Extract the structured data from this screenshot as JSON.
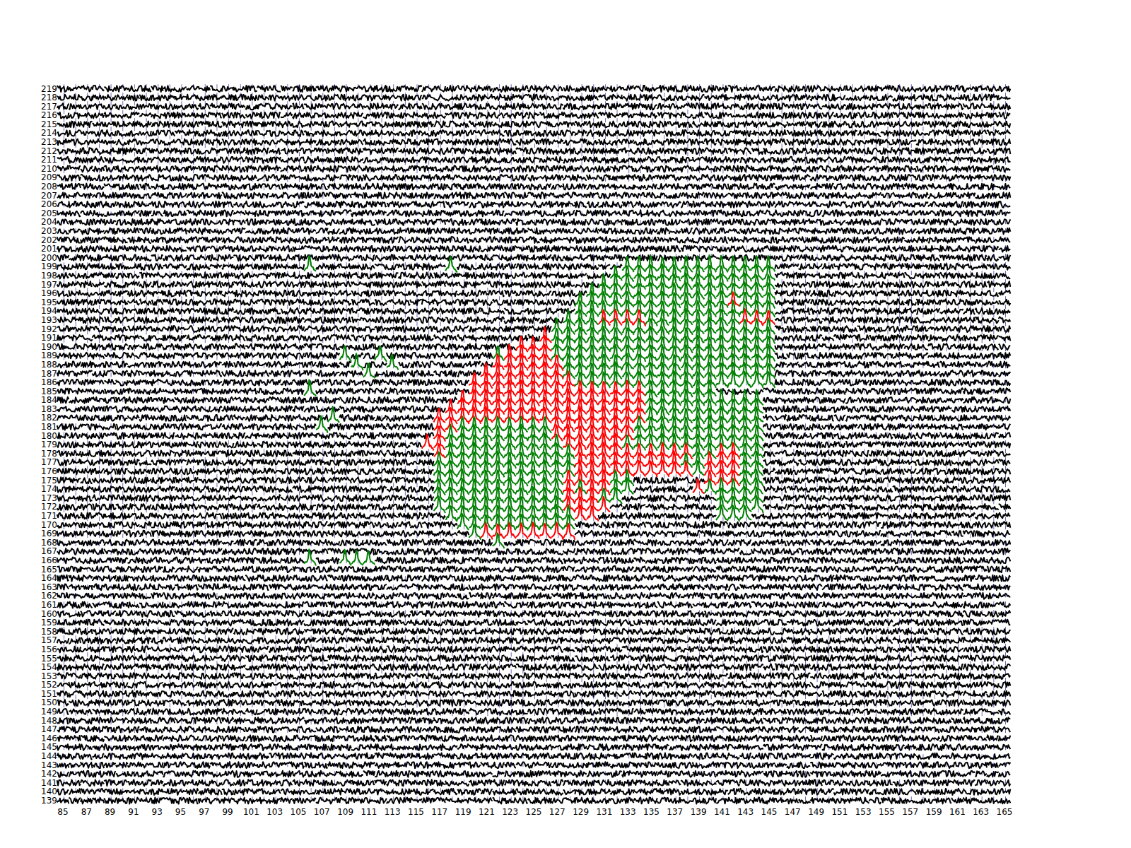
{
  "chart_data": {
    "type": "trace_grid",
    "xlim": [
      85,
      165
    ],
    "ylim": [
      139,
      219
    ],
    "xticks": [
      85,
      87,
      89,
      91,
      93,
      95,
      97,
      99,
      101,
      103,
      105,
      107,
      109,
      111,
      113,
      115,
      117,
      119,
      121,
      123,
      125,
      127,
      129,
      131,
      133,
      135,
      137,
      139,
      141,
      143,
      145,
      147,
      149,
      151,
      153,
      155,
      157,
      159,
      161,
      163,
      165
    ],
    "yticks": [
      139,
      140,
      141,
      142,
      143,
      144,
      145,
      146,
      147,
      148,
      149,
      150,
      151,
      152,
      153,
      154,
      155,
      156,
      157,
      158,
      159,
      160,
      161,
      162,
      163,
      164,
      165,
      166,
      167,
      168,
      169,
      170,
      171,
      172,
      173,
      174,
      175,
      176,
      177,
      178,
      179,
      180,
      181,
      182,
      183,
      184,
      185,
      186,
      187,
      188,
      189,
      190,
      191,
      192,
      193,
      194,
      195,
      196,
      197,
      198,
      199,
      200,
      201,
      202,
      203,
      204,
      205,
      206,
      207,
      208,
      209,
      210,
      211,
      212,
      213,
      214,
      215,
      216,
      217,
      218,
      219
    ],
    "color": "#000000",
    "series": [
      {
        "color": "#008000",
        "runs": [
          [
            199,
            106,
            106
          ],
          [
            199,
            118,
            118
          ],
          [
            199,
            133,
            145
          ],
          [
            198,
            132,
            145
          ],
          [
            197,
            131,
            145
          ],
          [
            196,
            130,
            145
          ],
          [
            195,
            129,
            145
          ],
          [
            194,
            129,
            145
          ],
          [
            193,
            128,
            145
          ],
          [
            192,
            127,
            145
          ],
          [
            191,
            126,
            145
          ],
          [
            190,
            124,
            145
          ],
          [
            189,
            122,
            145
          ],
          [
            189,
            109,
            109
          ],
          [
            189,
            112,
            112
          ],
          [
            188,
            122,
            145
          ],
          [
            188,
            110,
            110
          ],
          [
            188,
            113,
            113
          ],
          [
            187,
            121,
            145
          ],
          [
            187,
            111,
            111
          ],
          [
            186,
            120,
            145
          ],
          [
            185,
            120,
            140
          ],
          [
            185,
            106,
            106
          ],
          [
            184,
            119,
            144
          ],
          [
            183,
            118,
            144
          ],
          [
            182,
            117,
            144
          ],
          [
            182,
            108,
            108
          ],
          [
            181,
            117,
            144
          ],
          [
            181,
            107,
            107
          ],
          [
            180,
            117,
            144
          ],
          [
            179,
            116,
            144
          ],
          [
            178,
            117,
            144
          ],
          [
            177,
            117,
            144
          ],
          [
            176,
            117,
            144
          ],
          [
            175,
            117,
            133
          ],
          [
            175,
            140,
            144
          ],
          [
            174,
            117,
            133
          ],
          [
            174,
            139,
            144
          ],
          [
            173,
            117,
            132
          ],
          [
            173,
            141,
            144
          ],
          [
            172,
            117,
            131
          ],
          [
            172,
            141,
            144
          ],
          [
            171,
            118,
            130
          ],
          [
            171,
            141,
            143
          ],
          [
            170,
            119,
            128
          ],
          [
            169,
            120,
            128
          ],
          [
            168,
            122,
            122
          ],
          [
            166,
            106,
            106
          ],
          [
            166,
            109,
            111
          ]
        ]
      },
      {
        "color": "#ff0000",
        "runs": [
          [
            195,
            142,
            142
          ],
          [
            193,
            131,
            134
          ],
          [
            193,
            143,
            145
          ],
          [
            191,
            126,
            126
          ],
          [
            190,
            124,
            126
          ],
          [
            189,
            123,
            126
          ],
          [
            188,
            122,
            127
          ],
          [
            187,
            121,
            127
          ],
          [
            186,
            120,
            128
          ],
          [
            185,
            120,
            134
          ],
          [
            184,
            119,
            134
          ],
          [
            183,
            118,
            134
          ],
          [
            182,
            117,
            134
          ],
          [
            181,
            117,
            118
          ],
          [
            181,
            127,
            133
          ],
          [
            180,
            117,
            117
          ],
          [
            180,
            127,
            133
          ],
          [
            179,
            116,
            117
          ],
          [
            179,
            128,
            132
          ],
          [
            178,
            117,
            117
          ],
          [
            178,
            129,
            138
          ],
          [
            178,
            141,
            142
          ],
          [
            177,
            129,
            137
          ],
          [
            177,
            140,
            142
          ],
          [
            176,
            129,
            138
          ],
          [
            176,
            140,
            142
          ],
          [
            175,
            128,
            131
          ],
          [
            175,
            140,
            142
          ],
          [
            174,
            128,
            128
          ],
          [
            174,
            130,
            131
          ],
          [
            174,
            139,
            139
          ],
          [
            173,
            128,
            130
          ],
          [
            172,
            128,
            131
          ],
          [
            171,
            129,
            130
          ],
          [
            169,
            121,
            128
          ]
        ]
      }
    ]
  }
}
